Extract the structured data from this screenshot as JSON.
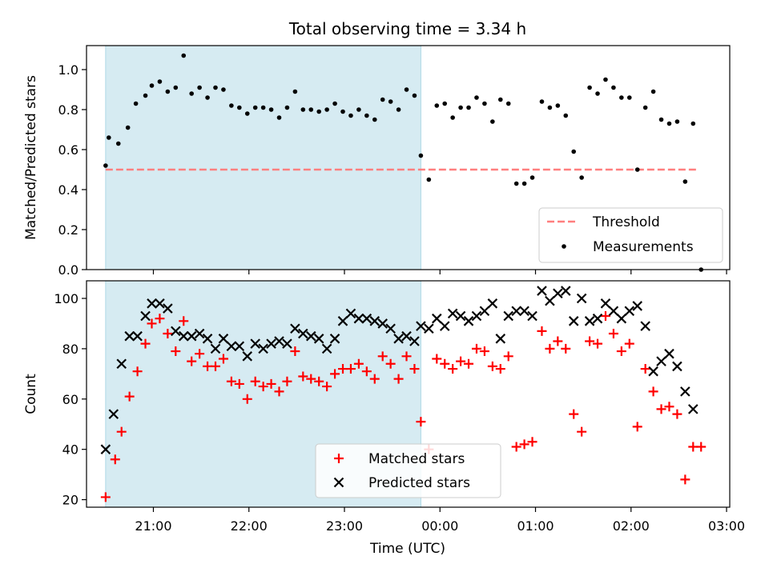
{
  "title": "Total observing time = 3.34 h",
  "xlabel": "Time (UTC)",
  "xticks": [
    "21:00",
    "22:00",
    "23:00",
    "00:00",
    "01:00",
    "02:00",
    "03:00"
  ],
  "colors": {
    "shade": "#add8e6",
    "threshold": "#ff7f7f",
    "measurement": "#000000",
    "matched": "#ff0000",
    "predicted": "#000000"
  },
  "chart_data": [
    {
      "type": "scatter",
      "panel": "top",
      "ylabel": "Matched/Predicted stars",
      "ylim": [
        0,
        1.12
      ],
      "yticks": [
        "0.0",
        "0.2",
        "0.4",
        "0.6",
        "0.8",
        "1.0"
      ],
      "ytick_values": [
        0,
        0.2,
        0.4,
        0.6,
        0.8,
        1.0
      ],
      "shaded_span": [
        "20:30",
        "23:48"
      ],
      "legend": {
        "position": "lower right",
        "entries": [
          "Threshold",
          "Measurements"
        ]
      },
      "threshold": {
        "name": "Threshold",
        "value": 0.5,
        "x_range": [
          "20:30",
          "02:42"
        ],
        "style": "dashed"
      },
      "series": [
        {
          "name": "Measurements",
          "marker": "dot",
          "points": [
            [
              "20:30",
              0.52
            ],
            [
              "20:32",
              0.66
            ],
            [
              "20:38",
              0.63
            ],
            [
              "20:44",
              0.71
            ],
            [
              "20:49",
              0.83
            ],
            [
              "20:55",
              0.87
            ],
            [
              "20:59",
              0.92
            ],
            [
              "21:04",
              0.94
            ],
            [
              "21:09",
              0.89
            ],
            [
              "21:14",
              0.91
            ],
            [
              "21:19",
              1.07
            ],
            [
              "21:24",
              0.88
            ],
            [
              "21:29",
              0.91
            ],
            [
              "21:34",
              0.86
            ],
            [
              "21:39",
              0.91
            ],
            [
              "21:44",
              0.9
            ],
            [
              "21:49",
              0.82
            ],
            [
              "21:54",
              0.81
            ],
            [
              "21:59",
              0.78
            ],
            [
              "22:04",
              0.81
            ],
            [
              "22:09",
              0.81
            ],
            [
              "22:14",
              0.8
            ],
            [
              "22:19",
              0.76
            ],
            [
              "22:24",
              0.81
            ],
            [
              "22:29",
              0.89
            ],
            [
              "22:34",
              0.8
            ],
            [
              "22:39",
              0.8
            ],
            [
              "22:44",
              0.79
            ],
            [
              "22:49",
              0.8
            ],
            [
              "22:54",
              0.83
            ],
            [
              "22:59",
              0.79
            ],
            [
              "23:04",
              0.77
            ],
            [
              "23:09",
              0.8
            ],
            [
              "23:14",
              0.77
            ],
            [
              "23:19",
              0.75
            ],
            [
              "23:24",
              0.85
            ],
            [
              "23:29",
              0.84
            ],
            [
              "23:34",
              0.8
            ],
            [
              "23:39",
              0.9
            ],
            [
              "23:44",
              0.87
            ],
            [
              "23:48",
              0.57
            ],
            [
              "23:53",
              0.45
            ],
            [
              "23:58",
              0.82
            ],
            [
              "00:03",
              0.83
            ],
            [
              "00:08",
              0.76
            ],
            [
              "00:13",
              0.81
            ],
            [
              "00:18",
              0.81
            ],
            [
              "00:23",
              0.86
            ],
            [
              "00:28",
              0.83
            ],
            [
              "00:33",
              0.74
            ],
            [
              "00:38",
              0.85
            ],
            [
              "00:43",
              0.83
            ],
            [
              "00:48",
              0.43
            ],
            [
              "00:53",
              0.43
            ],
            [
              "00:58",
              0.46
            ],
            [
              "01:04",
              0.84
            ],
            [
              "01:09",
              0.81
            ],
            [
              "01:14",
              0.82
            ],
            [
              "01:19",
              0.77
            ],
            [
              "01:24",
              0.59
            ],
            [
              "01:29",
              0.46
            ],
            [
              "01:34",
              0.91
            ],
            [
              "01:39",
              0.88
            ],
            [
              "01:44",
              0.95
            ],
            [
              "01:49",
              0.91
            ],
            [
              "01:54",
              0.86
            ],
            [
              "01:59",
              0.86
            ],
            [
              "02:04",
              0.5
            ],
            [
              "02:09",
              0.81
            ],
            [
              "02:14",
              0.89
            ],
            [
              "02:19",
              0.75
            ],
            [
              "02:24",
              0.73
            ],
            [
              "02:29",
              0.74
            ],
            [
              "02:34",
              0.44
            ],
            [
              "02:39",
              0.73
            ],
            [
              "02:44",
              0.0
            ]
          ]
        }
      ]
    },
    {
      "type": "scatter",
      "panel": "bottom",
      "ylabel": "Count",
      "ylim": [
        17,
        107
      ],
      "yticks": [
        "20",
        "40",
        "60",
        "80",
        "100"
      ],
      "ytick_values": [
        20,
        40,
        60,
        80,
        100
      ],
      "shaded_span": [
        "20:30",
        "23:48"
      ],
      "legend": {
        "position": "lower center",
        "entries": [
          "Matched stars",
          "Predicted stars"
        ]
      },
      "series": [
        {
          "name": "Matched stars",
          "marker": "plus",
          "points": [
            [
              "20:30",
              21
            ],
            [
              "20:36",
              36
            ],
            [
              "20:40",
              47
            ],
            [
              "20:45",
              61
            ],
            [
              "20:50",
              71
            ],
            [
              "20:55",
              82
            ],
            [
              "20:59",
              90
            ],
            [
              "21:04",
              92
            ],
            [
              "21:09",
              86
            ],
            [
              "21:14",
              79
            ],
            [
              "21:19",
              91
            ],
            [
              "21:24",
              75
            ],
            [
              "21:29",
              78
            ],
            [
              "21:34",
              73
            ],
            [
              "21:39",
              73
            ],
            [
              "21:44",
              76
            ],
            [
              "21:49",
              67
            ],
            [
              "21:54",
              66
            ],
            [
              "21:59",
              60
            ],
            [
              "22:04",
              67
            ],
            [
              "22:09",
              65
            ],
            [
              "22:14",
              66
            ],
            [
              "22:19",
              63
            ],
            [
              "22:24",
              67
            ],
            [
              "22:29",
              79
            ],
            [
              "22:34",
              69
            ],
            [
              "22:39",
              68
            ],
            [
              "22:44",
              67
            ],
            [
              "22:49",
              65
            ],
            [
              "22:54",
              70
            ],
            [
              "22:59",
              72
            ],
            [
              "23:04",
              72
            ],
            [
              "23:09",
              74
            ],
            [
              "23:14",
              71
            ],
            [
              "23:19",
              68
            ],
            [
              "23:24",
              77
            ],
            [
              "23:29",
              74
            ],
            [
              "23:34",
              68
            ],
            [
              "23:39",
              77
            ],
            [
              "23:44",
              72
            ],
            [
              "23:48",
              51
            ],
            [
              "23:53",
              40
            ],
            [
              "23:58",
              76
            ],
            [
              "00:03",
              74
            ],
            [
              "00:08",
              72
            ],
            [
              "00:13",
              75
            ],
            [
              "00:18",
              74
            ],
            [
              "00:23",
              80
            ],
            [
              "00:28",
              79
            ],
            [
              "00:33",
              73
            ],
            [
              "00:38",
              72
            ],
            [
              "00:43",
              77
            ],
            [
              "00:48",
              41
            ],
            [
              "00:53",
              42
            ],
            [
              "00:58",
              43
            ],
            [
              "01:04",
              87
            ],
            [
              "01:09",
              80
            ],
            [
              "01:14",
              83
            ],
            [
              "01:19",
              80
            ],
            [
              "01:24",
              54
            ],
            [
              "01:29",
              47
            ],
            [
              "01:34",
              83
            ],
            [
              "01:39",
              82
            ],
            [
              "01:44",
              93
            ],
            [
              "01:49",
              86
            ],
            [
              "01:54",
              79
            ],
            [
              "01:59",
              82
            ],
            [
              "02:04",
              49
            ],
            [
              "02:09",
              72
            ],
            [
              "02:14",
              63
            ],
            [
              "02:19",
              56
            ],
            [
              "02:24",
              57
            ],
            [
              "02:29",
              54
            ],
            [
              "02:34",
              28
            ],
            [
              "02:39",
              41
            ],
            [
              "02:44",
              41
            ]
          ]
        },
        {
          "name": "Predicted stars",
          "marker": "x",
          "points": [
            [
              "20:30",
              40
            ],
            [
              "20:35",
              54
            ],
            [
              "20:40",
              74
            ],
            [
              "20:45",
              85
            ],
            [
              "20:50",
              85
            ],
            [
              "20:55",
              93
            ],
            [
              "20:59",
              98
            ],
            [
              "21:04",
              98
            ],
            [
              "21:09",
              96
            ],
            [
              "21:14",
              87
            ],
            [
              "21:19",
              85
            ],
            [
              "21:24",
              85
            ],
            [
              "21:29",
              86
            ],
            [
              "21:34",
              84
            ],
            [
              "21:39",
              80
            ],
            [
              "21:44",
              84
            ],
            [
              "21:49",
              81
            ],
            [
              "21:54",
              81
            ],
            [
              "21:59",
              77
            ],
            [
              "22:04",
              82
            ],
            [
              "22:09",
              80
            ],
            [
              "22:14",
              82
            ],
            [
              "22:19",
              83
            ],
            [
              "22:24",
              82
            ],
            [
              "22:29",
              88
            ],
            [
              "22:34",
              86
            ],
            [
              "22:39",
              85
            ],
            [
              "22:44",
              84
            ],
            [
              "22:49",
              80
            ],
            [
              "22:54",
              84
            ],
            [
              "22:59",
              91
            ],
            [
              "23:04",
              94
            ],
            [
              "23:09",
              92
            ],
            [
              "23:14",
              92
            ],
            [
              "23:19",
              91
            ],
            [
              "23:24",
              90
            ],
            [
              "23:29",
              88
            ],
            [
              "23:34",
              84
            ],
            [
              "23:39",
              85
            ],
            [
              "23:44",
              83
            ],
            [
              "23:48",
              89
            ],
            [
              "23:53",
              88
            ],
            [
              "23:58",
              92
            ],
            [
              "00:03",
              89
            ],
            [
              "00:08",
              94
            ],
            [
              "00:13",
              93
            ],
            [
              "00:18",
              91
            ],
            [
              "00:23",
              93
            ],
            [
              "00:28",
              95
            ],
            [
              "00:33",
              98
            ],
            [
              "00:38",
              84
            ],
            [
              "00:43",
              93
            ],
            [
              "00:48",
              95
            ],
            [
              "00:53",
              95
            ],
            [
              "00:58",
              93
            ],
            [
              "01:04",
              103
            ],
            [
              "01:09",
              99
            ],
            [
              "01:14",
              102
            ],
            [
              "01:19",
              103
            ],
            [
              "01:24",
              91
            ],
            [
              "01:29",
              100
            ],
            [
              "01:34",
              91
            ],
            [
              "01:39",
              92
            ],
            [
              "01:44",
              98
            ],
            [
              "01:49",
              95
            ],
            [
              "01:54",
              92
            ],
            [
              "01:59",
              95
            ],
            [
              "02:04",
              97
            ],
            [
              "02:09",
              89
            ],
            [
              "02:14",
              71
            ],
            [
              "02:19",
              75
            ],
            [
              "02:24",
              78
            ],
            [
              "02:29",
              73
            ],
            [
              "02:34",
              63
            ],
            [
              "02:39",
              56
            ]
          ]
        }
      ]
    }
  ]
}
